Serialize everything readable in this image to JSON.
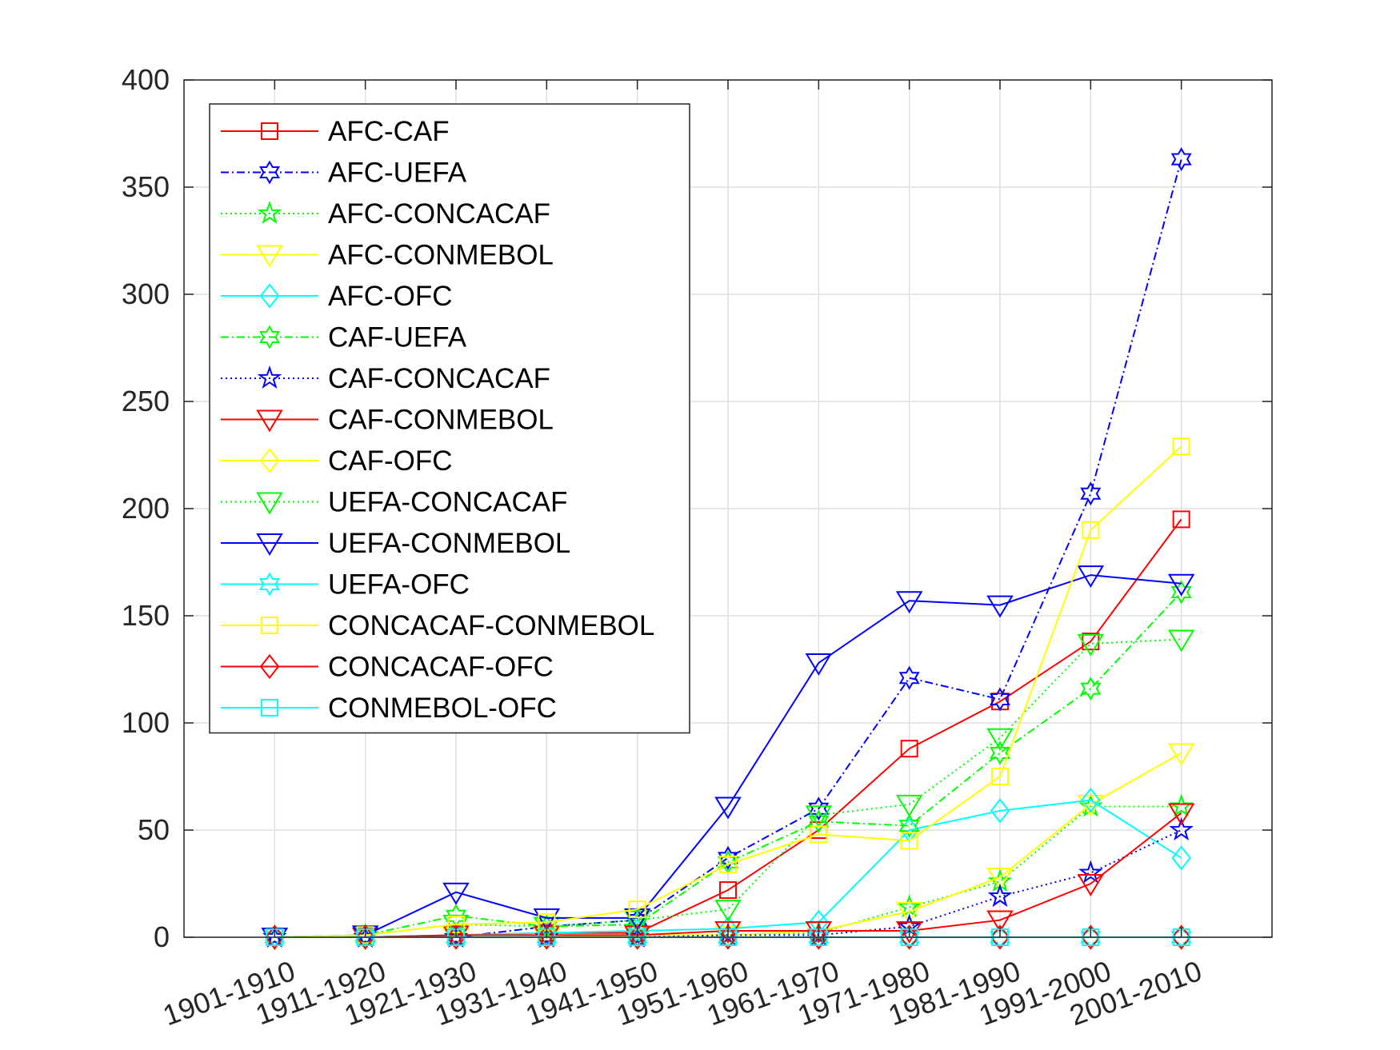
{
  "chart_data": {
    "type": "line",
    "title": "",
    "xlabel": "",
    "ylabel": "",
    "categories": [
      "1901-1910",
      "1911-1920",
      "1921-1930",
      "1931-1940",
      "1941-1950",
      "1951-1960",
      "1961-1970",
      "1971-1980",
      "1981-1990",
      "1991-2000",
      "2001-2010"
    ],
    "ylim": [
      0,
      400
    ],
    "yticks": [
      0,
      50,
      100,
      150,
      200,
      250,
      300,
      350,
      400
    ],
    "grid": true,
    "legend_position": "top-left",
    "series": [
      {
        "name": "AFC-CAF",
        "color": "#ff0000",
        "dash": "solid",
        "marker": "square",
        "values": [
          0,
          0,
          1,
          2,
          2,
          22,
          50,
          88,
          110,
          138,
          195
        ]
      },
      {
        "name": "AFC-UEFA",
        "color": "#0000ff",
        "dash": "dashdot",
        "marker": "hexagram",
        "values": [
          0,
          0,
          0,
          5,
          8,
          37,
          60,
          121,
          111,
          207,
          363
        ]
      },
      {
        "name": "AFC-CONCACAF",
        "color": "#00ff00",
        "dash": "dotted",
        "marker": "pentagram",
        "values": [
          0,
          0,
          0,
          0,
          1,
          1,
          2,
          14,
          26,
          61,
          61
        ]
      },
      {
        "name": "AFC-CONMEBOL",
        "color": "#ffff00",
        "dash": "solid",
        "marker": "triangle-down",
        "values": [
          0,
          0,
          0,
          0,
          1,
          1,
          3,
          12,
          28,
          62,
          86
        ]
      },
      {
        "name": "AFC-OFC",
        "color": "#00ffff",
        "dash": "solid",
        "marker": "diamond",
        "values": [
          0,
          0,
          1,
          2,
          3,
          4,
          7,
          50,
          59,
          64,
          37
        ]
      },
      {
        "name": "CAF-UEFA",
        "color": "#00ff00",
        "dash": "dashdot",
        "marker": "hexagram",
        "values": [
          0,
          1,
          10,
          5,
          6,
          35,
          54,
          52,
          86,
          116,
          161
        ]
      },
      {
        "name": "CAF-CONCACAF",
        "color": "#0000ff",
        "dash": "dotted",
        "marker": "pentagram",
        "values": [
          0,
          0,
          0,
          0,
          0,
          1,
          1,
          5,
          19,
          30,
          50
        ]
      },
      {
        "name": "CAF-CONMEBOL",
        "color": "#ff0000",
        "dash": "solid",
        "marker": "triangle-down",
        "values": [
          0,
          0,
          1,
          1,
          1,
          3,
          3,
          3,
          8,
          25,
          58
        ]
      },
      {
        "name": "CAF-OFC",
        "color": "#ffff00",
        "dash": "solid",
        "marker": "diamond",
        "values": [
          0,
          0,
          0,
          0,
          0,
          0,
          0,
          0,
          0,
          0,
          0
        ]
      },
      {
        "name": "UEFA-CONCACAF",
        "color": "#00ff00",
        "dash": "dotted",
        "marker": "triangle-down",
        "values": [
          0,
          1,
          6,
          5,
          8,
          13,
          57,
          62,
          93,
          137,
          139
        ]
      },
      {
        "name": "UEFA-CONMEBOL",
        "color": "#0000ff",
        "dash": "solid",
        "marker": "triangle-down",
        "values": [
          0,
          1,
          21,
          9,
          9,
          61,
          128,
          157,
          155,
          169,
          165
        ]
      },
      {
        "name": "UEFA-OFC",
        "color": "#00ffff",
        "dash": "solid",
        "marker": "hexagram",
        "values": [
          0,
          0,
          0,
          0,
          0,
          0,
          0,
          0,
          0,
          0,
          0
        ]
      },
      {
        "name": "CONCACAF-CONMEBOL",
        "color": "#ffff00",
        "dash": "solid",
        "marker": "square",
        "values": [
          0,
          1,
          6,
          7,
          13,
          34,
          48,
          45,
          75,
          190,
          229
        ]
      },
      {
        "name": "CONCACAF-OFC",
        "color": "#ff0000",
        "dash": "solid",
        "marker": "diamond",
        "values": [
          0,
          0,
          0,
          0,
          0,
          0,
          0,
          0,
          0,
          0,
          0
        ]
      },
      {
        "name": "CONMEBOL-OFC",
        "color": "#00ffff",
        "dash": "solid",
        "marker": "square",
        "values": [
          0,
          0,
          0,
          0,
          0,
          0,
          0,
          0,
          0,
          0,
          0
        ]
      }
    ]
  }
}
